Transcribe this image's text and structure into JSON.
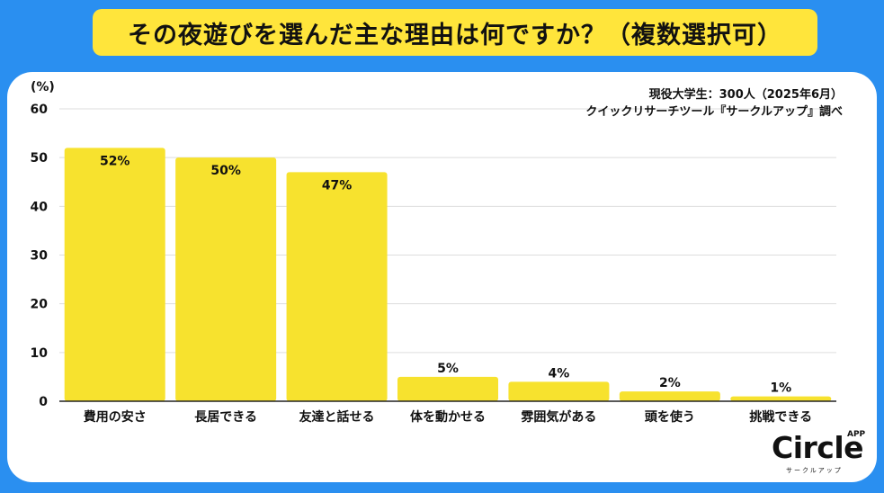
{
  "title": "その夜遊びを選んだ主な理由は何ですか？（複数選択可）",
  "logo": {
    "main": "Circle",
    "badge": "APP",
    "sub": "サークルアップ"
  },
  "chart_data": {
    "type": "bar",
    "unit_label": "(%)",
    "ylim": [
      0,
      60
    ],
    "yticks": [
      0,
      10,
      20,
      30,
      40,
      50,
      60
    ],
    "grid": true,
    "categories": [
      "費用の安さ",
      "長居できる",
      "友達と話せる",
      "体を動かせる",
      "雰囲気がある",
      "頭を使う",
      "挑戦できる"
    ],
    "values": [
      52,
      50,
      47,
      5,
      4,
      2,
      1
    ],
    "data_labels": [
      "52%",
      "50%",
      "47%",
      "5%",
      "4%",
      "2%",
      "1%"
    ],
    "annotations": [
      "現役大学生：300人（2025年6月）",
      "クイックリサーチツール『サークルアップ』調べ"
    ],
    "colors": {
      "bar": "#f7e22e",
      "grid": "#dddddd",
      "axis": "#222222"
    }
  }
}
